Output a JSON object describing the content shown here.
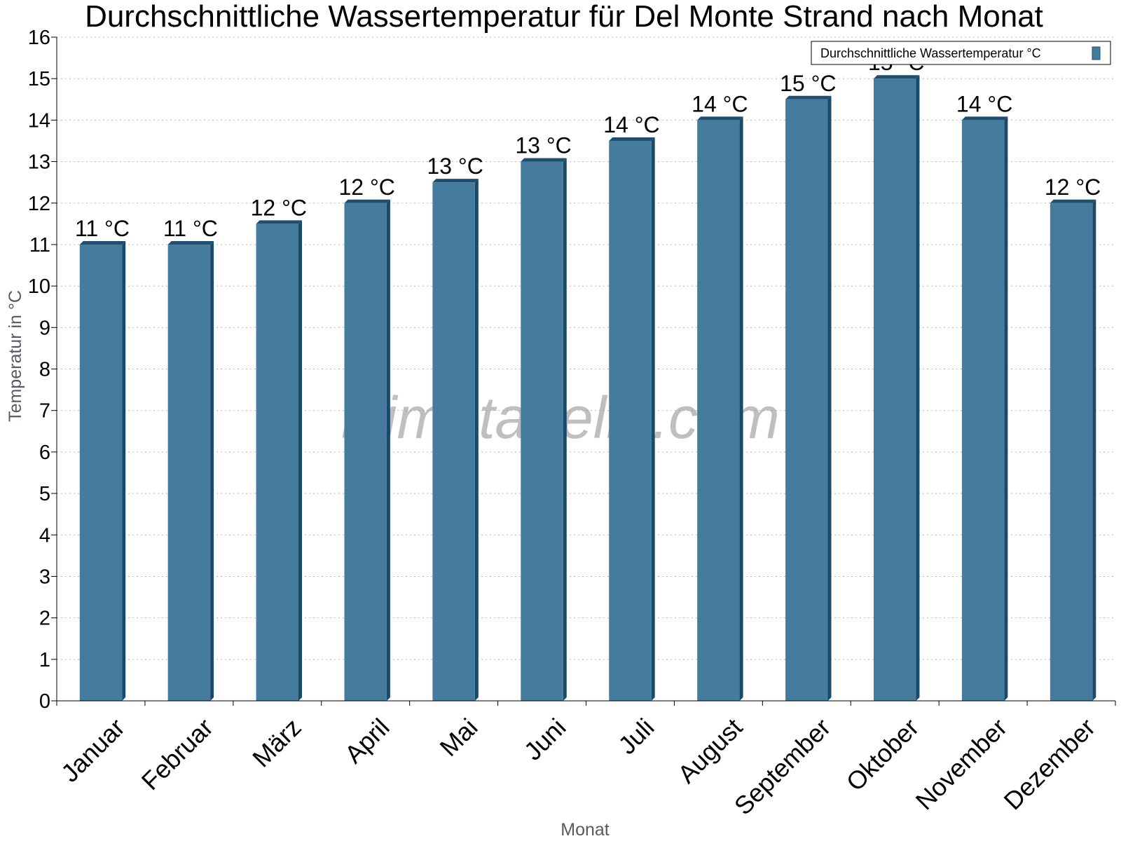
{
  "chart_data": {
    "type": "bar",
    "title": "Durchschnittliche Wassertemperatur für Del Monte Strand nach Monat",
    "xlabel": "Monat",
    "ylabel": "Temperatur in °C",
    "categories": [
      "Januar",
      "Februar",
      "März",
      "April",
      "Mai",
      "Juni",
      "Juli",
      "August",
      "September",
      "Oktober",
      "November",
      "Dezember"
    ],
    "series": [
      {
        "name": "Durchschnittliche Wassertemperatur °C",
        "values": [
          11,
          11,
          11.5,
          12,
          12.5,
          13,
          13.5,
          14,
          14.5,
          15,
          14,
          12
        ],
        "labels": [
          "11 °C",
          "11 °C",
          "12 °C",
          "12 °C",
          "13 °C",
          "13 °C",
          "14 °C",
          "14 °C",
          "15 °C",
          "15 °C",
          "14 °C",
          "12 °C"
        ],
        "color": "#457b9d"
      }
    ],
    "ylim": [
      0,
      16
    ],
    "yticks": [
      0,
      1,
      2,
      3,
      4,
      5,
      6,
      7,
      8,
      9,
      10,
      11,
      12,
      13,
      14,
      15,
      16
    ],
    "grid": true,
    "legend_position": "top-right",
    "watermark": "klimatabelle.com"
  }
}
